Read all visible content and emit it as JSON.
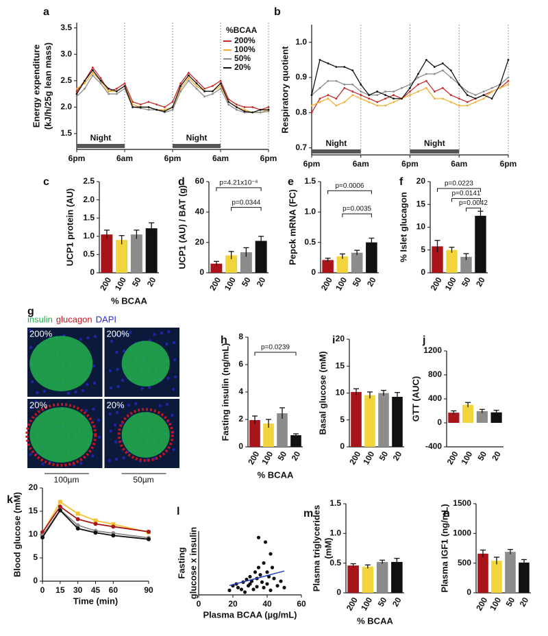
{
  "chart_data": [
    {
      "type": "line",
      "panel": "a",
      "ylabel": [
        "Energy expenditure",
        "(kJ/h/25g lean mass)"
      ],
      "x": [
        0,
        2,
        4,
        6,
        8,
        10,
        12,
        14,
        16,
        18,
        20,
        22,
        24,
        26,
        28,
        30,
        32,
        34,
        36,
        38,
        40,
        42,
        44,
        46,
        48
      ],
      "xlim": [
        0,
        48
      ],
      "xticks": [
        {
          "value": 0,
          "label": "6pm"
        },
        {
          "value": 12,
          "label": "6am"
        },
        {
          "value": 24,
          "label": "6pm"
        },
        {
          "value": 36,
          "label": "6am"
        },
        {
          "value": 48,
          "label": "6pm"
        }
      ],
      "ylim": [
        1.2,
        3.6
      ],
      "yticks": [
        1.5,
        {
          "value": 2,
          "label": "2.0"
        },
        2.5,
        {
          "value": 3,
          "label": "3.0"
        },
        3.5
      ],
      "xgrid": true,
      "annotations": [
        "Night",
        "Night"
      ],
      "legend": "upper right",
      "legend_title": "%BCAA",
      "series": [
        {
          "name": "200%",
          "color": "#c62828",
          "values": [
            2.3,
            2.5,
            2.75,
            2.55,
            2.3,
            2.35,
            2.45,
            2.1,
            2.05,
            2.1,
            2.05,
            2.0,
            2.1,
            2.45,
            2.65,
            2.5,
            2.35,
            2.4,
            2.5,
            2.15,
            2.05,
            2.0,
            2.0,
            1.95,
            2.0
          ]
        },
        {
          "name": "100%",
          "color": "#f0b030",
          "values": [
            2.35,
            2.45,
            2.65,
            2.5,
            2.3,
            2.3,
            2.4,
            2.05,
            2.0,
            2.0,
            1.95,
            1.95,
            2.0,
            2.35,
            2.55,
            2.4,
            2.3,
            2.3,
            2.4,
            2.1,
            2.0,
            1.95,
            1.9,
            1.9,
            1.95
          ]
        },
        {
          "name": "50%",
          "color": "#8a8a8a",
          "values": [
            2.2,
            2.35,
            2.6,
            2.45,
            2.25,
            2.25,
            2.35,
            2.0,
            1.98,
            1.95,
            1.95,
            1.9,
            1.95,
            2.3,
            2.5,
            2.35,
            2.2,
            2.25,
            2.35,
            2.05,
            1.95,
            1.9,
            1.9,
            1.9,
            1.92
          ]
        },
        {
          "name": "20%",
          "color": "#111111",
          "values": [
            2.25,
            2.5,
            2.7,
            2.5,
            2.35,
            2.3,
            2.4,
            2.0,
            2.0,
            2.0,
            1.95,
            1.92,
            2.0,
            2.4,
            2.6,
            2.45,
            2.3,
            2.3,
            2.45,
            2.1,
            2.0,
            1.92,
            1.9,
            1.95,
            1.95
          ]
        }
      ]
    },
    {
      "type": "line",
      "panel": "b",
      "ylabel": [
        "Respiratory quotient"
      ],
      "x": [
        0,
        2,
        4,
        6,
        8,
        10,
        12,
        14,
        16,
        18,
        20,
        22,
        24,
        26,
        28,
        30,
        32,
        34,
        36,
        38,
        40,
        42,
        44,
        46,
        48
      ],
      "xlim": [
        0,
        48
      ],
      "xticks": [
        {
          "value": 0,
          "label": "6pm"
        },
        {
          "value": 12,
          "label": "6am"
        },
        {
          "value": 24,
          "label": "6pm"
        },
        {
          "value": 36,
          "label": "6am"
        },
        {
          "value": 48,
          "label": "6pm"
        }
      ],
      "ylim": [
        0.68,
        1.05
      ],
      "yticks": [
        0.7,
        0.8,
        0.9,
        {
          "value": 1,
          "label": "1.0"
        }
      ],
      "xgrid": true,
      "annotations": [
        "Night",
        "Night"
      ],
      "series": [
        {
          "color": "#c62828",
          "values": [
            0.8,
            0.84,
            0.85,
            0.84,
            0.87,
            0.86,
            0.85,
            0.84,
            0.83,
            0.84,
            0.85,
            0.84,
            0.86,
            0.88,
            0.89,
            0.86,
            0.87,
            0.85,
            0.84,
            0.83,
            0.84,
            0.85,
            0.86,
            0.87,
            0.89
          ]
        },
        {
          "color": "#f0b030",
          "values": [
            0.82,
            0.83,
            0.84,
            0.82,
            0.83,
            0.85,
            0.84,
            0.83,
            0.82,
            0.82,
            0.83,
            0.84,
            0.85,
            0.86,
            0.87,
            0.84,
            0.84,
            0.83,
            0.82,
            0.82,
            0.83,
            0.84,
            0.86,
            0.87,
            0.88
          ]
        },
        {
          "color": "#8a8a8a",
          "values": [
            0.85,
            0.87,
            0.89,
            0.89,
            0.88,
            0.88,
            0.86,
            0.85,
            0.85,
            0.86,
            0.86,
            0.87,
            0.88,
            0.9,
            0.91,
            0.91,
            0.92,
            0.9,
            0.88,
            0.86,
            0.85,
            0.86,
            0.87,
            0.88,
            0.9
          ]
        },
        {
          "color": "#111111",
          "values": [
            0.85,
            0.95,
            0.94,
            0.93,
            0.93,
            0.92,
            0.88,
            0.85,
            0.86,
            0.85,
            0.84,
            0.84,
            0.87,
            0.91,
            0.95,
            0.93,
            0.94,
            0.92,
            0.88,
            0.85,
            0.84,
            0.85,
            0.84,
            0.88,
            0.95
          ]
        }
      ]
    },
    {
      "type": "bar",
      "panel": "c",
      "ylabel": [
        "UCP1 protein (AU)"
      ],
      "xlabel": "% BCAA",
      "categories": [
        "200",
        "100",
        "50",
        "20"
      ],
      "values": [
        1.05,
        0.9,
        1.05,
        1.22
      ],
      "errors": [
        0.12,
        0.12,
        0.12,
        0.15
      ],
      "colors": [
        "#a8141a",
        "#f2d43d",
        "#8c8c8c",
        "#111111"
      ],
      "ylim": [
        0,
        2.5
      ],
      "yticks": [
        0,
        0.5,
        {
          "value": 1,
          "label": "1.0"
        },
        1.5,
        {
          "value": 2,
          "label": "2.0"
        },
        2.5
      ]
    },
    {
      "type": "bar",
      "panel": "d",
      "ylabel": [
        "UCP1 (AU) / BAT (g)"
      ],
      "categories": [
        "200",
        "100",
        "50",
        "20"
      ],
      "values": [
        6,
        11.5,
        13.5,
        21
      ],
      "errors": [
        1.5,
        2.5,
        3,
        3
      ],
      "colors": [
        "#a8141a",
        "#f2d43d",
        "#8c8c8c",
        "#111111"
      ],
      "ylim": [
        0,
        60
      ],
      "yticks": [
        0,
        20,
        40,
        60
      ],
      "annotations": [
        "p=4.21x10⁻⁶",
        "p=0.0344"
      ]
    },
    {
      "type": "bar",
      "panel": "e",
      "ylabel": [
        "Pepck mRNA (FC)"
      ],
      "categories": [
        "200",
        "100",
        "50",
        "20"
      ],
      "values": [
        0.21,
        0.27,
        0.33,
        0.5
      ],
      "errors": [
        0.03,
        0.04,
        0.04,
        0.07
      ],
      "colors": [
        "#a8141a",
        "#f2d43d",
        "#8c8c8c",
        "#111111"
      ],
      "ylim": [
        0,
        1.5
      ],
      "yticks": [
        0,
        0.5,
        {
          "value": 1,
          "label": "1.0"
        },
        1.5
      ],
      "annotations": [
        "p=0.0006",
        "p=0.0035"
      ]
    },
    {
      "type": "bar",
      "panel": "f",
      "ylabel": [
        "% Islet glucagon"
      ],
      "categories": [
        "200",
        "100",
        "50",
        "20"
      ],
      "values": [
        5.8,
        5.0,
        3.5,
        12.5
      ],
      "errors": [
        1.3,
        0.6,
        0.7,
        1.0
      ],
      "colors": [
        "#a8141a",
        "#f2d43d",
        "#8c8c8c",
        "#111111"
      ],
      "ylim": [
        0,
        20
      ],
      "yticks": [
        0,
        5,
        10,
        15,
        20
      ],
      "annotations": [
        "p=0.0223",
        "p=0.0141",
        "p=0.0042"
      ]
    },
    {
      "type": "image",
      "panel": "g",
      "stains": [
        "insulin",
        "glucagon",
        "DAPI"
      ],
      "stain_colors": [
        "#22b14c",
        "#c8141a",
        "#2a2ad8"
      ],
      "labels": [
        "200%",
        "200%",
        "20%",
        "20%"
      ],
      "scale_bars": [
        "100µm",
        "50µm"
      ]
    },
    {
      "type": "bar",
      "panel": "h",
      "ylabel": [
        "Fasting insulin (ng/mL)"
      ],
      "xlabel": "% BCAA",
      "categories": [
        "200",
        "100",
        "50",
        "20"
      ],
      "values": [
        1.95,
        1.7,
        2.45,
        0.85
      ],
      "errors": [
        0.3,
        0.3,
        0.4,
        0.1
      ],
      "colors": [
        "#a8141a",
        "#f2d43d",
        "#8c8c8c",
        "#111111"
      ],
      "ylim": [
        0,
        8
      ],
      "yticks": [
        0,
        2,
        4,
        6,
        8
      ],
      "annotations": [
        "p=0.0239"
      ]
    },
    {
      "type": "bar",
      "panel": "i",
      "ylabel": [
        "Basal glucose (mM)"
      ],
      "categories": [
        "200",
        "100",
        "50",
        "20"
      ],
      "values": [
        10.2,
        9.6,
        10,
        9.3
      ],
      "errors": [
        0.6,
        0.6,
        0.5,
        0.8
      ],
      "colors": [
        "#a8141a",
        "#f2d43d",
        "#8c8c8c",
        "#111111"
      ],
      "ylim": [
        0,
        20
      ],
      "yticks": [
        0,
        5,
        10,
        15,
        20
      ]
    },
    {
      "type": "bar",
      "panel": "j",
      "ylabel": [
        "GTT (AUC)"
      ],
      "categories": [
        "200",
        "100",
        "50",
        "20"
      ],
      "values": [
        170,
        300,
        195,
        175
      ],
      "errors": [
        30,
        40,
        30,
        35
      ],
      "colors": [
        "#a8141a",
        "#f2d43d",
        "#8c8c8c",
        "#111111"
      ],
      "ylim": [
        -400,
        1200
      ],
      "yticks": [
        -400,
        0,
        400,
        800,
        1200
      ]
    },
    {
      "type": "line",
      "panel": "k",
      "ylabel": [
        "Blood glucose  (mM)"
      ],
      "xlabel": "Time (min)",
      "x": [
        0,
        15,
        30,
        45,
        60,
        90
      ],
      "xlim": [
        0,
        90
      ],
      "xticks": [
        0,
        15,
        30,
        45,
        60,
        90
      ],
      "ylim": [
        0,
        20
      ],
      "yticks": [
        0,
        5,
        10,
        15,
        20
      ],
      "markers": true,
      "series": [
        {
          "color": "#f2c230",
          "values": [
            10.3,
            17,
            14.5,
            13,
            12.2,
            10.5
          ]
        },
        {
          "color": "#a8141a",
          "values": [
            10.5,
            16,
            13.3,
            12.3,
            11.7,
            10.6
          ]
        },
        {
          "color": "#8c8c8c",
          "values": [
            9.8,
            15.3,
            12,
            10.8,
            10.3,
            9.3
          ]
        },
        {
          "color": "#111111",
          "values": [
            9.4,
            15.2,
            11.3,
            10.4,
            9.8,
            9.0
          ]
        }
      ]
    },
    {
      "type": "scatter",
      "panel": "l",
      "ylabel": [
        "Fasting",
        "glucose x insulin"
      ],
      "xlabel": "Plasma BCAA (µg/mL)",
      "x": [
        18,
        20,
        22,
        23,
        25,
        26,
        27,
        28,
        29,
        30,
        30,
        31,
        32,
        33,
        34,
        34,
        35,
        35,
        36,
        37,
        38,
        38,
        39,
        40,
        40,
        41,
        42,
        42,
        43,
        44,
        46,
        48,
        50
      ],
      "values": [
        5,
        10,
        12,
        8,
        6,
        14,
        3,
        17,
        10,
        12,
        20,
        15,
        6,
        25,
        18,
        9,
        63,
        30,
        22,
        14,
        35,
        8,
        58,
        25,
        12,
        20,
        45,
        5,
        30,
        18,
        10,
        15,
        8
      ],
      "xlim": [
        0,
        60
      ],
      "xticks": [
        0,
        20,
        40,
        60
      ],
      "ylim": [
        0,
        70
      ],
      "color": "#111111",
      "fit_color": "#1f3fbf"
    },
    {
      "type": "bar",
      "panel": "m",
      "ylabel": [
        "Plasma triglycerides",
        "(mM)"
      ],
      "xlabel": "% BCAA",
      "categories": [
        "200",
        "100",
        "50",
        "20"
      ],
      "values": [
        0.46,
        0.44,
        0.52,
        0.52
      ],
      "errors": [
        0.03,
        0.03,
        0.03,
        0.06
      ],
      "colors": [
        "#a8141a",
        "#f2d43d",
        "#8c8c8c",
        "#111111"
      ],
      "ylim": [
        0,
        1.5
      ],
      "yticks": [
        0,
        0.5,
        {
          "value": 1,
          "label": "1.0"
        },
        1.5
      ]
    },
    {
      "type": "bar",
      "panel": "n",
      "ylabel": [
        "Plasma  IGF1 (ng/mL)"
      ],
      "categories": [
        "200",
        "100",
        "50",
        "20"
      ],
      "values": [
        660,
        540,
        690,
        510
      ],
      "errors": [
        60,
        60,
        40,
        50
      ],
      "colors": [
        "#a8141a",
        "#f2d43d",
        "#8c8c8c",
        "#111111"
      ],
      "ylim": [
        0,
        1500
      ],
      "yticks": [
        0,
        500,
        1000,
        1500
      ]
    }
  ]
}
